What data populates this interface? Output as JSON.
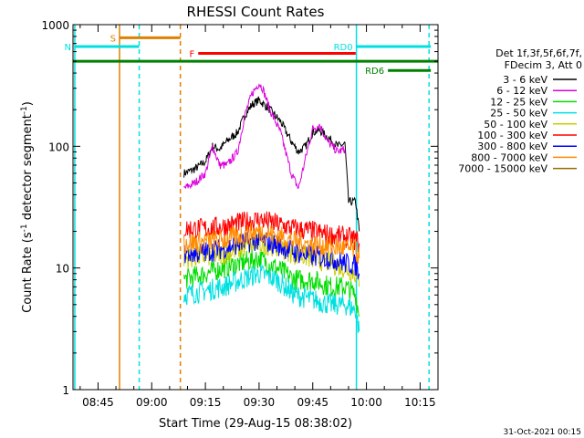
{
  "chart_data": {
    "type": "line",
    "title": "RHESSI Count Rates",
    "xlabel": "Start Time (29-Aug-15 08:38:02)",
    "ylabel": "Count Rate (s",
    "ylabel_sup": "-1",
    "ylabel_rest": " detector segment",
    "ylabel_sup2": "-1",
    "ylabel_close": ")",
    "y_scale": "log",
    "ylim": [
      1,
      1000
    ],
    "xlim_minutes_after_0830": [
      8,
      110
    ],
    "x_ticks": [
      {
        "label": "08:45",
        "minute": 15
      },
      {
        "label": "09:00",
        "minute": 30
      },
      {
        "label": "09:15",
        "minute": 45
      },
      {
        "label": "09:30",
        "minute": 60
      },
      {
        "label": "09:45",
        "minute": 75
      },
      {
        "label": "10:00",
        "minute": 90
      },
      {
        "label": "10:15",
        "minute": 105
      }
    ],
    "y_ticks": [
      {
        "label": "1",
        "value": 1
      },
      {
        "label": "10",
        "value": 10
      },
      {
        "label": "100",
        "value": 100
      },
      {
        "label": "1000",
        "value": 1000
      }
    ],
    "grid": false,
    "legend_position": "right",
    "legend_header": [
      "Det 1f,3f,5f,6f,7f,",
      "FDecim 3, Att 0"
    ],
    "series": [
      {
        "name": "3 - 6 keV",
        "color": "#000000",
        "points": [
          [
            39,
            60
          ],
          [
            42,
            65
          ],
          [
            45,
            75
          ],
          [
            47,
            100
          ],
          [
            49,
            95
          ],
          [
            51,
            110
          ],
          [
            54,
            130
          ],
          [
            56,
            180
          ],
          [
            58,
            220
          ],
          [
            60,
            240
          ],
          [
            63,
            200
          ],
          [
            66,
            160
          ],
          [
            69,
            110
          ],
          [
            71,
            90
          ],
          [
            73,
            100
          ],
          [
            75,
            130
          ],
          [
            77,
            135
          ],
          [
            79,
            120
          ],
          [
            82,
            100
          ],
          [
            84,
            105
          ],
          [
            85,
            35
          ],
          [
            87,
            35
          ],
          [
            88,
            20
          ]
        ]
      },
      {
        "name": "6 - 12 keV",
        "color": "#dd00dd",
        "points": [
          [
            39,
            45
          ],
          [
            42,
            50
          ],
          [
            45,
            60
          ],
          [
            47,
            100
          ],
          [
            49,
            70
          ],
          [
            51,
            70
          ],
          [
            54,
            90
          ],
          [
            56,
            180
          ],
          [
            58,
            270
          ],
          [
            60,
            330
          ],
          [
            61,
            300
          ],
          [
            63,
            200
          ],
          [
            66,
            130
          ],
          [
            69,
            60
          ],
          [
            71,
            45
          ],
          [
            73,
            80
          ],
          [
            75,
            140
          ],
          [
            77,
            150
          ],
          [
            79,
            110
          ],
          [
            82,
            90
          ],
          [
            84,
            95
          ]
        ]
      },
      {
        "name": "12 - 25 keV",
        "color": "#00dd00",
        "points": [
          [
            39,
            8
          ],
          [
            45,
            9
          ],
          [
            50,
            10
          ],
          [
            55,
            11
          ],
          [
            60,
            12
          ],
          [
            65,
            10
          ],
          [
            70,
            8
          ],
          [
            75,
            8
          ],
          [
            80,
            7
          ],
          [
            84,
            7
          ],
          [
            87,
            6
          ],
          [
            88,
            4
          ]
        ]
      },
      {
        "name": "25 - 50 keV",
        "color": "#00e0e0",
        "points": [
          [
            39,
            6
          ],
          [
            45,
            6.5
          ],
          [
            50,
            7
          ],
          [
            55,
            8
          ],
          [
            60,
            9
          ],
          [
            65,
            8
          ],
          [
            70,
            6
          ],
          [
            75,
            5.5
          ],
          [
            80,
            5
          ],
          [
            84,
            5
          ],
          [
            87,
            4.5
          ],
          [
            88,
            3
          ]
        ]
      },
      {
        "name": "50 - 100 keV",
        "color": "#cccc00",
        "points": [
          [
            39,
            12
          ],
          [
            45,
            12.5
          ],
          [
            50,
            13
          ],
          [
            55,
            14.5
          ],
          [
            60,
            16
          ],
          [
            65,
            15
          ],
          [
            70,
            13
          ],
          [
            75,
            12
          ],
          [
            80,
            11
          ],
          [
            84,
            10
          ],
          [
            87,
            9
          ],
          [
            88,
            7
          ]
        ]
      },
      {
        "name": "100 - 300 keV",
        "color": "#ff0000",
        "points": [
          [
            39,
            21
          ],
          [
            45,
            21
          ],
          [
            50,
            22
          ],
          [
            55,
            23.5
          ],
          [
            60,
            25
          ],
          [
            65,
            23
          ],
          [
            70,
            21
          ],
          [
            75,
            20
          ],
          [
            80,
            18.5
          ],
          [
            84,
            18
          ],
          [
            87,
            17
          ],
          [
            88,
            16
          ]
        ]
      },
      {
        "name": "300 - 800 keV",
        "color": "#0000ff",
        "points": [
          [
            39,
            13
          ],
          [
            45,
            13.5
          ],
          [
            50,
            14.5
          ],
          [
            55,
            16
          ],
          [
            60,
            17
          ],
          [
            65,
            15.5
          ],
          [
            70,
            13.5
          ],
          [
            75,
            12.5
          ],
          [
            80,
            12
          ],
          [
            84,
            11
          ],
          [
            87,
            10.5
          ],
          [
            88,
            9
          ]
        ]
      },
      {
        "name": "800 - 7000 keV",
        "color": "#ff8c00",
        "points": [
          [
            39,
            16
          ],
          [
            45,
            16.5
          ],
          [
            50,
            17
          ],
          [
            55,
            18.5
          ],
          [
            60,
            20
          ],
          [
            65,
            18.5
          ],
          [
            70,
            16.5
          ],
          [
            75,
            15.5
          ],
          [
            80,
            15
          ],
          [
            84,
            14.5
          ],
          [
            87,
            14
          ],
          [
            88,
            12
          ]
        ]
      },
      {
        "name": "7000 - 15000 keV",
        "color": "#9b6a00",
        "points": []
      }
    ],
    "vertical_markers": [
      {
        "minute": 8.5,
        "color": "#00e0e0",
        "style": "solid"
      },
      {
        "minute": 21,
        "color": "#e08000",
        "style": "solid"
      },
      {
        "minute": 26.5,
        "color": "#00e0e0",
        "style": "dashed"
      },
      {
        "minute": 38,
        "color": "#e08000",
        "style": "dashed"
      },
      {
        "minute": 87.2,
        "color": "#00e0e0",
        "style": "solid"
      },
      {
        "minute": 107.5,
        "color": "#00e0e0",
        "style": "dashed"
      }
    ],
    "flag_bars": [
      {
        "label": "S",
        "color": "#e08000",
        "x_start": 21,
        "x_end": 38,
        "y_value": 780
      },
      {
        "label": "N",
        "color": "#00e0e0",
        "x_start": 8.5,
        "x_end": 26.5,
        "y_value": 660
      },
      {
        "label": "F",
        "color": "#ff0000",
        "x_start": 43,
        "x_end": 87,
        "y_value": 580
      },
      {
        "label": "RD0",
        "color": "#00e0e0",
        "x_start": 87.2,
        "x_end": 108,
        "y_value": 660
      },
      {
        "label": "RD6",
        "color": "#008000",
        "x_start": 96,
        "x_end": 108,
        "y_value": 420
      },
      {
        "label": "",
        "color": "#008000",
        "x_start": 8,
        "x_end": 110,
        "y_value": 500
      }
    ],
    "footer_date": "31-Oct-2021 00:15"
  }
}
